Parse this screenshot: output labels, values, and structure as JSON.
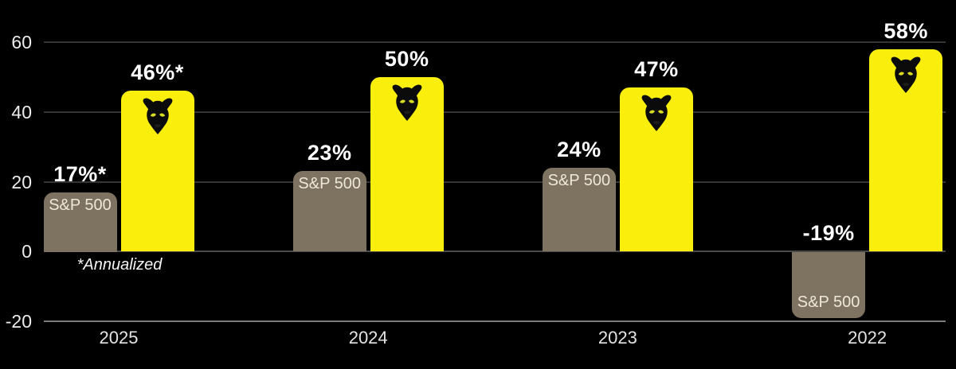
{
  "chart_data": {
    "type": "bar",
    "title": "",
    "categories": [
      "2025",
      "2024",
      "2023",
      "2022"
    ],
    "series": [
      {
        "name": "S&P 500",
        "color": "#7e7361",
        "values": [
          17,
          23,
          24,
          -19
        ],
        "value_labels": [
          "17%*",
          "23%",
          "24%",
          "-19%"
        ],
        "bar_text": "S&P 500",
        "bar_text_color": "#efe8d6"
      },
      {
        "name": "Panther fund",
        "color": "#f9ee0c",
        "values": [
          46,
          50,
          47,
          58
        ],
        "value_labels": [
          "46%*",
          "50%",
          "47%",
          "58%"
        ],
        "icon": "panther-icon",
        "icon_color": "#0b0b0b",
        "icon_eye_color": "#d9dc25"
      }
    ],
    "yticks": [
      {
        "value": 60,
        "label": "60"
      },
      {
        "value": 40,
        "label": "40"
      },
      {
        "value": 20,
        "label": "20"
      },
      {
        "value": 0,
        "label": "0"
      },
      {
        "value": -20,
        "label": "-20"
      }
    ],
    "ylim": [
      -20,
      66
    ],
    "xlabel": "",
    "ylabel": "",
    "grid": true,
    "legend_position": "none",
    "annotation": "*Annualized",
    "value_label_color": "#ffffff",
    "axis_text_color": "#ececec",
    "gridline_color": "#343434",
    "zero_line_color": "#4a4a4a",
    "baseline_color": "#7d7d7d",
    "background_color": "#000000"
  }
}
